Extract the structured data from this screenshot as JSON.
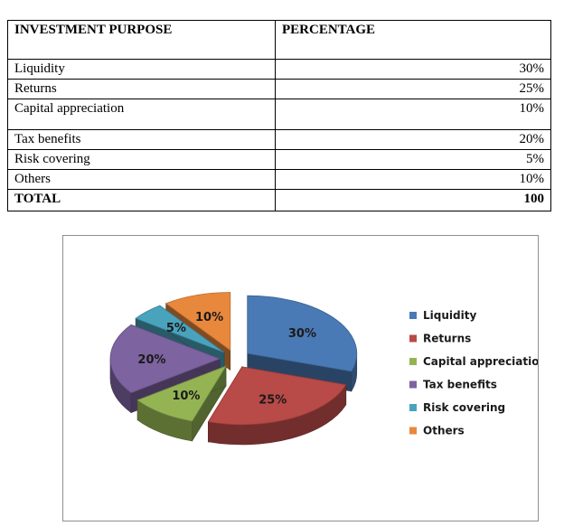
{
  "table": {
    "headers": [
      "INVESTMENT PURPOSE",
      "PERCENTAGE"
    ],
    "rows": [
      {
        "label": "Liquidity",
        "value": "30%"
      },
      {
        "label": "Returns",
        "value": "25%"
      },
      {
        "label": "Capital appreciation",
        "value": "10%"
      },
      {
        "label": "Tax benefits",
        "value": "20%"
      },
      {
        "label": "Risk covering",
        "value": "5%"
      },
      {
        "label": "Others",
        "value": "10%"
      }
    ],
    "total": {
      "label": "TOTAL",
      "value": "100"
    }
  },
  "chart_data": {
    "type": "pie",
    "style": "3d-exploded",
    "categories": [
      "Liquidity",
      "Returns",
      "Capital appreciation",
      "Tax benefits",
      "Risk covering",
      "Others"
    ],
    "values": [
      30,
      25,
      10,
      20,
      5,
      10
    ],
    "labels": [
      "30%",
      "25%",
      "10%",
      "20%",
      "5%",
      "10%"
    ],
    "colors": [
      "#4a7ab5",
      "#b84a47",
      "#94b454",
      "#7d63a0",
      "#4aa3bd",
      "#e8883d"
    ],
    "legend_position": "right"
  }
}
